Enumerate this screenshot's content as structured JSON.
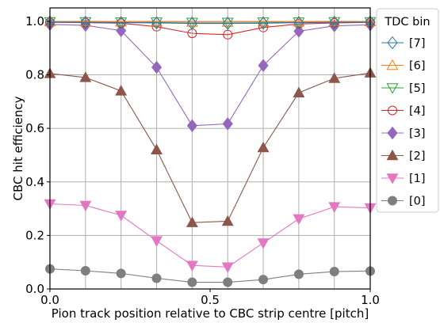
{
  "chart_data": {
    "type": "line",
    "xlabel": "Pion track position relative to CBC strip centre [pitch]",
    "ylabel": "CBC hit efficiency",
    "xlim": [
      0.0,
      1.0
    ],
    "ylim": [
      0.0,
      1.05
    ],
    "xticks": [
      0.0,
      0.5,
      1.0
    ],
    "xtick_labels": [
      "0.0",
      "0.5",
      "1.0"
    ],
    "yticks": [
      0.0,
      0.2,
      0.4,
      0.6,
      0.8,
      1.0
    ],
    "ytick_labels": [
      "0.0",
      "0.2",
      "0.4",
      "0.6",
      "0.8",
      "1.0"
    ],
    "grid_x": [
      0.111,
      0.222,
      0.333,
      0.444,
      0.555,
      0.666,
      0.777,
      0.888
    ],
    "grid_y": [
      0.2,
      0.4,
      0.6,
      0.8,
      1.0
    ],
    "grid": true,
    "legend_title": "TDC bin",
    "legend_placement": "outside-right-top",
    "x": [
      0.0,
      0.111,
      0.222,
      0.333,
      0.444,
      0.555,
      0.666,
      0.777,
      0.888,
      1.0
    ],
    "series": [
      {
        "name": "[7]",
        "color": "#1f77b4",
        "marker": "diamond-open",
        "values": [
          0.997,
          0.996,
          0.995,
          0.994,
          0.992,
          0.992,
          0.993,
          0.995,
          0.996,
          0.997
        ]
      },
      {
        "name": "[6]",
        "color": "#ff7f0e",
        "marker": "triangle-up-open",
        "values": [
          0.999,
          0.999,
          0.998,
          0.998,
          0.997,
          0.997,
          0.998,
          0.998,
          0.999,
          0.999
        ]
      },
      {
        "name": "[5]",
        "color": "#2ca02c",
        "marker": "triangle-down-open",
        "values": [
          0.998,
          0.998,
          0.997,
          0.997,
          0.996,
          0.996,
          0.997,
          0.997,
          0.998,
          0.998
        ]
      },
      {
        "name": "[4]",
        "color": "#d62728",
        "marker": "circle-open",
        "values": [
          0.996,
          0.995,
          0.993,
          0.98,
          0.955,
          0.95,
          0.977,
          0.99,
          0.994,
          0.996
        ]
      },
      {
        "name": "[3]",
        "color": "#9467bd",
        "marker": "diamond",
        "values": [
          0.988,
          0.985,
          0.965,
          0.828,
          0.61,
          0.617,
          0.835,
          0.963,
          0.983,
          0.987
        ]
      },
      {
        "name": "[2]",
        "color": "#8c564b",
        "marker": "triangle-up",
        "values": [
          0.805,
          0.79,
          0.74,
          0.52,
          0.248,
          0.253,
          0.528,
          0.733,
          0.787,
          0.807
        ]
      },
      {
        "name": "[1]",
        "color": "#e377c2",
        "marker": "triangle-down",
        "values": [
          0.318,
          0.312,
          0.275,
          0.18,
          0.088,
          0.082,
          0.172,
          0.262,
          0.307,
          0.303
        ]
      },
      {
        "name": "[0]",
        "color": "#7f7f7f",
        "marker": "circle",
        "values": [
          0.075,
          0.068,
          0.058,
          0.04,
          0.025,
          0.025,
          0.035,
          0.055,
          0.065,
          0.067
        ]
      }
    ]
  }
}
